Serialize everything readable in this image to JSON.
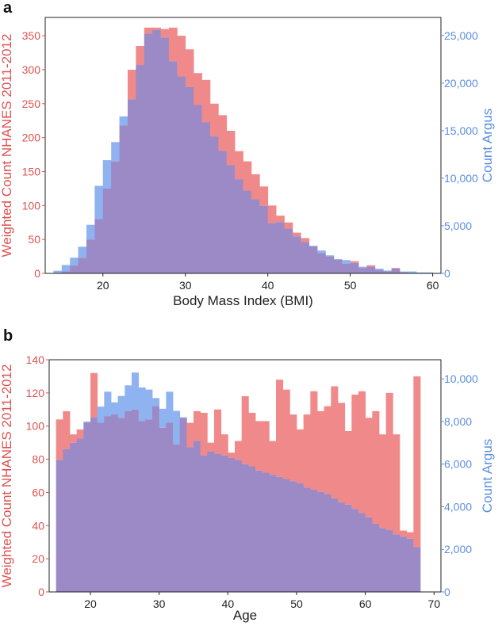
{
  "colors": {
    "nhanes": "#f08a8a",
    "argus": "#8fb3f0",
    "overlap": "#9b8ac6",
    "nhanes_text": "#e05050",
    "argus_text": "#5b8ee0",
    "axis": "#222222"
  },
  "chart_data": [
    {
      "panel": "a",
      "type": "bar",
      "title": "",
      "xlabel": "Body Mass Index (BMI)",
      "ylabel_left": "Weighted Count NHANES 2011-2012",
      "ylabel_right": "Count Argus",
      "xlim": [
        13,
        61
      ],
      "ylim_left": [
        0,
        377
      ],
      "ylim_right": [
        0,
        26900
      ],
      "xticks": [
        20,
        30,
        40,
        50,
        60
      ],
      "xtick_labels": [
        "20",
        "30",
        "40",
        "50",
        "60"
      ],
      "yticks_left": [
        0,
        50,
        100,
        150,
        200,
        250,
        300,
        350
      ],
      "yticks_right": [
        0,
        5000,
        10000,
        15000,
        20000,
        25000
      ],
      "ytick_labels_right": [
        "0",
        "5,000",
        "10,000",
        "15,000",
        "20,000",
        "25,000"
      ],
      "bin_width": 1,
      "bin_start": 14,
      "series": [
        {
          "name": "Weighted Count NHANES 2011-2012",
          "axis": "left",
          "values": [
            0,
            3,
            12,
            23,
            50,
            80,
            125,
            165,
            218,
            300,
            335,
            362,
            362,
            360,
            362,
            350,
            330,
            295,
            285,
            250,
            233,
            210,
            180,
            165,
            146,
            128,
            100,
            85,
            75,
            60,
            52,
            40,
            30,
            25,
            20,
            14,
            18,
            8,
            12,
            5,
            3,
            8,
            2,
            0,
            0,
            0,
            0
          ]
        },
        {
          "name": "Count Argus",
          "axis": "right",
          "values": [
            280,
            880,
            1650,
            2800,
            5100,
            9200,
            11900,
            13800,
            16500,
            18300,
            21900,
            25200,
            25600,
            24800,
            22300,
            20700,
            19600,
            17700,
            15900,
            14400,
            12900,
            11400,
            9900,
            8700,
            7800,
            7100,
            5300,
            5400,
            4700,
            3900,
            3300,
            2900,
            2400,
            1900,
            1500,
            1400,
            1100,
            700,
            700,
            500,
            300,
            500,
            200,
            200,
            100,
            100,
            50
          ]
        }
      ]
    },
    {
      "panel": "b",
      "type": "bar",
      "title": "",
      "xlabel": "Age",
      "ylabel_left": "Weighted Count NHANES 2011-2012",
      "ylabel_right": "Count Argus",
      "xlim": [
        14,
        71
      ],
      "ylim_left": [
        0,
        140
      ],
      "ylim_right": [
        0,
        10900
      ],
      "xticks": [
        20,
        30,
        40,
        50,
        60,
        70
      ],
      "xtick_labels": [
        "20",
        "30",
        "40",
        "50",
        "60",
        "70"
      ],
      "yticks_left": [
        0,
        20,
        40,
        60,
        80,
        100,
        120,
        140
      ],
      "yticks_right": [
        0,
        2000,
        4000,
        6000,
        8000,
        10000
      ],
      "ytick_labels_right": [
        "0",
        "2,000",
        "4,000",
        "6,000",
        "8,000",
        "10,000"
      ],
      "bin_width": 1,
      "bin_start": 15,
      "series": [
        {
          "name": "Weighted Count NHANES 2011-2012",
          "axis": "left",
          "values": [
            104,
            109,
            95,
            98,
            102,
            132,
            102,
            106,
            107,
            105,
            109,
            110,
            103,
            104,
            112,
            99,
            102,
            89,
            105,
            102,
            109,
            108,
            90,
            110,
            95,
            84,
            91,
            118,
            108,
            103,
            103,
            91,
            128,
            122,
            107,
            98,
            107,
            121,
            109,
            112,
            124,
            114,
            97,
            119,
            121,
            105,
            109,
            95,
            120,
            95,
            37,
            36,
            130
          ]
        },
        {
          "name": "Count Argus",
          "axis": "right",
          "values": [
            6200,
            6700,
            7000,
            7200,
            8000,
            8200,
            8700,
            9400,
            8900,
            9200,
            9700,
            10300,
            9600,
            9500,
            9100,
            8600,
            9400,
            8500,
            8200,
            6800,
            7100,
            6400,
            6600,
            6500,
            6400,
            6300,
            6200,
            6000,
            5900,
            5700,
            5600,
            5500,
            5400,
            5300,
            5200,
            5100,
            4900,
            4800,
            4700,
            4600,
            4400,
            4200,
            4100,
            3900,
            3700,
            3500,
            3200,
            3000,
            2900,
            2700,
            2600,
            2500,
            2100
          ]
        }
      ]
    }
  ]
}
